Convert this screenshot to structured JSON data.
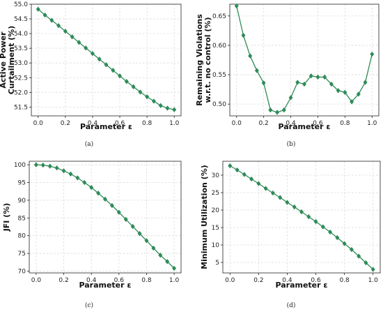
{
  "chart_data": [
    {
      "type": "line",
      "caption": "(a)",
      "xlabel": "Parameter ε",
      "ylabel": [
        "Active Power",
        "Curtailment (%)"
      ],
      "xlim": [
        -0.05,
        1.05
      ],
      "ylim": [
        51.2,
        55.0
      ],
      "xticks": [
        "0.0",
        "0.2",
        "0.4",
        "0.6",
        "0.8",
        "1.0"
      ],
      "yticks": [
        "51.5",
        "52.0",
        "52.5",
        "53.0",
        "53.5",
        "54.0",
        "54.5",
        "55.0"
      ],
      "grid": true,
      "color": "#2e8b57",
      "marker": "diamond",
      "x": [
        0.0,
        0.05,
        0.1,
        0.15,
        0.2,
        0.25,
        0.3,
        0.35,
        0.4,
        0.45,
        0.5,
        0.55,
        0.6,
        0.65,
        0.7,
        0.75,
        0.8,
        0.85,
        0.9,
        0.95,
        1.0
      ],
      "y": [
        54.83,
        54.63,
        54.45,
        54.27,
        54.08,
        53.89,
        53.7,
        53.51,
        53.32,
        53.13,
        52.94,
        52.75,
        52.56,
        52.37,
        52.19,
        52.01,
        51.85,
        51.7,
        51.55,
        51.46,
        51.41
      ]
    },
    {
      "type": "line",
      "caption": "(b)",
      "xlabel": "Parameter ε",
      "ylabel": [
        "Remaining Violations",
        "w.r.t. no control (%)"
      ],
      "xlim": [
        -0.05,
        1.05
      ],
      "ylim": [
        0.48,
        0.67
      ],
      "xticks": [
        "0.0",
        "0.2",
        "0.4",
        "0.6",
        "0.8",
        "1.0"
      ],
      "yticks": [
        "0.50",
        "0.55",
        "0.60",
        "0.65"
      ],
      "grid": true,
      "color": "#2e8b57",
      "marker": "diamond",
      "x": [
        0.0,
        0.05,
        0.1,
        0.15,
        0.2,
        0.25,
        0.3,
        0.35,
        0.4,
        0.45,
        0.5,
        0.55,
        0.6,
        0.65,
        0.7,
        0.75,
        0.8,
        0.85,
        0.9,
        0.95,
        1.0
      ],
      "y": [
        0.667,
        0.617,
        0.582,
        0.557,
        0.536,
        0.49,
        0.486,
        0.49,
        0.511,
        0.537,
        0.534,
        0.548,
        0.546,
        0.546,
        0.534,
        0.523,
        0.52,
        0.504,
        0.517,
        0.537,
        0.585
      ]
    },
    {
      "type": "line",
      "caption": "(c)",
      "xlabel": "Parameter ε",
      "ylabel": [
        "JFI (%)"
      ],
      "xlim": [
        -0.05,
        1.05
      ],
      "ylim": [
        69.5,
        101
      ],
      "xticks": [
        "0.0",
        "0.2",
        "0.4",
        "0.6",
        "0.8",
        "1.0"
      ],
      "yticks": [
        "70",
        "75",
        "80",
        "85",
        "90",
        "95",
        "100"
      ],
      "grid": true,
      "color": "#2e8b57",
      "marker": "diamond",
      "x": [
        0.0,
        0.05,
        0.1,
        0.15,
        0.2,
        0.25,
        0.3,
        0.35,
        0.4,
        0.45,
        0.5,
        0.55,
        0.6,
        0.65,
        0.7,
        0.75,
        0.8,
        0.85,
        0.9,
        0.95,
        1.0
      ],
      "y": [
        100.0,
        99.9,
        99.6,
        99.1,
        98.3,
        97.4,
        96.3,
        95.0,
        93.6,
        92.0,
        90.3,
        88.5,
        86.6,
        84.6,
        82.6,
        80.6,
        78.6,
        76.5,
        74.5,
        72.7,
        70.8
      ]
    },
    {
      "type": "line",
      "caption": "(d)",
      "xlabel": "Parameter ε",
      "ylabel": [
        "Minimum Utilization (%)"
      ],
      "xlim": [
        -0.05,
        1.05
      ],
      "ylim": [
        2,
        34
      ],
      "xticks": [
        "0.0",
        "0.2",
        "0.4",
        "0.6",
        "0.8",
        "1.0"
      ],
      "yticks": [
        "5",
        "10",
        "15",
        "20",
        "25",
        "30"
      ],
      "grid": true,
      "color": "#2e8b57",
      "marker": "diamond",
      "x": [
        0.0,
        0.05,
        0.1,
        0.15,
        0.2,
        0.25,
        0.3,
        0.35,
        0.4,
        0.45,
        0.5,
        0.55,
        0.6,
        0.65,
        0.7,
        0.75,
        0.8,
        0.85,
        0.9,
        0.95,
        1.0
      ],
      "y": [
        32.7,
        31.5,
        30.2,
        28.9,
        27.6,
        26.2,
        24.9,
        23.6,
        22.2,
        20.9,
        19.5,
        18.1,
        16.7,
        15.2,
        13.7,
        12.1,
        10.4,
        8.7,
        6.8,
        4.9,
        3.0
      ]
    }
  ]
}
